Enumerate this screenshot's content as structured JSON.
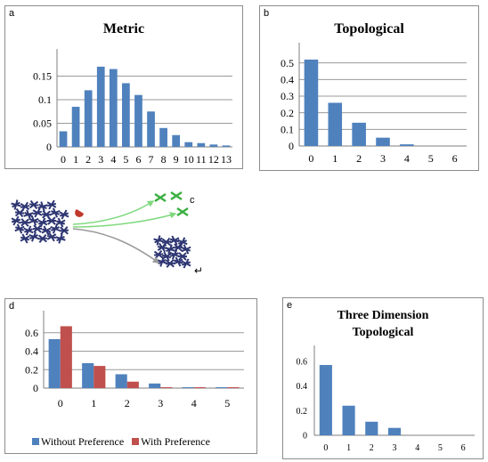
{
  "panels": {
    "a": {
      "letter": "a",
      "title": "Metric"
    },
    "b": {
      "letter": "b",
      "title": "Topological"
    },
    "c": {
      "letter": "c",
      "mark": "↵"
    },
    "d": {
      "letter": "d",
      "legend": [
        "Without Preference",
        "With Preference"
      ]
    },
    "e": {
      "letter": "e",
      "title_lines": [
        "Three Dimension",
        "Topological"
      ]
    }
  },
  "colors": {
    "blue": "#4f81bd",
    "red": "#c0504d",
    "grid": "#9a9a9a",
    "axis": "#7f7f7f",
    "bird_dark": "#2e3672",
    "bird_green": "#3cb043",
    "arrow_green": "#7fd97f",
    "arrow_gray": "#9a9a9a",
    "bird_red": "#c0392b"
  },
  "chart_data": [
    {
      "id": "a",
      "type": "bar",
      "title": "Metric",
      "categories": [
        "0",
        "1",
        "2",
        "3",
        "4",
        "5",
        "6",
        "7",
        "8",
        "9",
        "10",
        "11",
        "12",
        "13"
      ],
      "values": [
        0.033,
        0.085,
        0.12,
        0.17,
        0.165,
        0.135,
        0.11,
        0.075,
        0.04,
        0.025,
        0.01,
        0.008,
        0.005,
        0.003
      ],
      "ylim": [
        0,
        0.2
      ],
      "yticks": [
        "0",
        "0.05",
        "0.1",
        "0.15"
      ],
      "ytick_values": [
        0,
        0.05,
        0.1,
        0.15
      ],
      "grid": true
    },
    {
      "id": "b",
      "type": "bar",
      "title": "Topological",
      "categories": [
        "0",
        "1",
        "2",
        "3",
        "4",
        "5",
        "6"
      ],
      "values": [
        0.52,
        0.26,
        0.14,
        0.05,
        0.01,
        0,
        0
      ],
      "ylim": [
        0,
        0.6
      ],
      "yticks": [
        "0",
        "0.1",
        "0.2",
        "0.3",
        "0.4",
        "0.5"
      ],
      "ytick_values": [
        0,
        0.1,
        0.2,
        0.3,
        0.4,
        0.5
      ],
      "grid": true
    },
    {
      "id": "d",
      "type": "bar",
      "categories": [
        "0",
        "1",
        "2",
        "3",
        "4",
        "5"
      ],
      "series": [
        {
          "name": "Without Preference",
          "values": [
            0.53,
            0.27,
            0.15,
            0.05,
            0.01,
            0.01
          ]
        },
        {
          "name": "With Preference",
          "values": [
            0.67,
            0.24,
            0.07,
            0.01,
            0.01,
            0.01
          ]
        }
      ],
      "ylim": [
        0,
        0.8
      ],
      "yticks": [
        "0",
        "0.2",
        "0.4",
        "0.6"
      ],
      "ytick_values": [
        0,
        0.2,
        0.4,
        0.6
      ],
      "grid": true,
      "legend_position": "bottom"
    },
    {
      "id": "e",
      "type": "bar",
      "title": "Three Dimension Topological",
      "categories": [
        "0",
        "1",
        "2",
        "3",
        "4",
        "5",
        "6"
      ],
      "values": [
        0.57,
        0.24,
        0.11,
        0.06,
        0,
        0,
        0
      ],
      "ylim": [
        0,
        0.7
      ],
      "yticks": [
        "0",
        "0.2",
        "0.4",
        "0.6"
      ],
      "ytick_values": [
        0,
        0.2,
        0.4,
        0.6
      ],
      "grid": false
    }
  ]
}
